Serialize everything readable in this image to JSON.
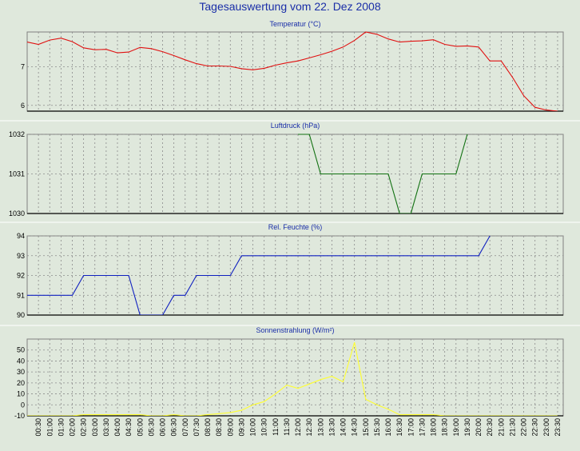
{
  "title": "Tagesauswertung vom 22. Dez 2008",
  "chart_data": [
    {
      "type": "line",
      "title": "Temperatur (°C)",
      "color": "#e01010",
      "ylim": [
        5.85,
        7.9
      ],
      "yticks": [
        6,
        7
      ],
      "grid": true,
      "x": [
        "00:00",
        "00:30",
        "01:00",
        "01:30",
        "02:00",
        "02:30",
        "03:00",
        "03:30",
        "04:00",
        "04:30",
        "05:00",
        "05:30",
        "06:00",
        "06:30",
        "07:00",
        "07:30",
        "08:00",
        "08:30",
        "09:00",
        "09:30",
        "10:00",
        "10:30",
        "11:00",
        "11:30",
        "12:00",
        "12:30",
        "13:00",
        "13:30",
        "14:00",
        "14:30",
        "15:00",
        "15:30",
        "16:00",
        "16:30",
        "17:00",
        "17:30",
        "18:00",
        "18:30",
        "19:00",
        "19:30",
        "20:00",
        "20:30",
        "21:00",
        "21:30",
        "22:00",
        "22:30",
        "23:00",
        "23:30"
      ],
      "values": [
        7.64,
        7.58,
        7.69,
        7.74,
        7.65,
        7.49,
        7.44,
        7.45,
        7.36,
        7.38,
        7.5,
        7.47,
        7.39,
        7.29,
        7.18,
        7.08,
        7.02,
        7.02,
        7.01,
        6.95,
        6.92,
        6.96,
        7.04,
        7.1,
        7.15,
        7.23,
        7.31,
        7.4,
        7.51,
        7.68,
        7.9,
        7.84,
        7.72,
        7.64,
        7.66,
        7.67,
        7.7,
        7.58,
        7.53,
        7.54,
        7.51,
        7.15,
        7.15,
        6.73,
        6.25,
        5.95,
        5.88,
        5.85
      ]
    },
    {
      "type": "line",
      "title": "Luftdruck (hPa)",
      "color": "#107010",
      "ylim": [
        1030,
        1032
      ],
      "yticks": [
        1030,
        1031,
        1032
      ],
      "grid": true,
      "x": [
        "12:00",
        "12:30",
        "13:00",
        "13:30",
        "14:00",
        "14:30",
        "15:00",
        "15:30",
        "16:00",
        "16:30",
        "17:00",
        "17:30",
        "18:00",
        "18:30",
        "19:00",
        "19:30"
      ],
      "values": [
        1032,
        1032,
        1031,
        1031,
        1031,
        1031,
        1031,
        1031,
        1031,
        1030,
        1030,
        1031,
        1031,
        1031,
        1031,
        1032
      ]
    },
    {
      "type": "line",
      "title": "Rel. Feuchte (%)",
      "color": "#1020c0",
      "ylim": [
        90,
        94
      ],
      "yticks": [
        90,
        91,
        92,
        93,
        94
      ],
      "grid": true,
      "x": [
        "00:00",
        "00:30",
        "01:00",
        "01:30",
        "02:00",
        "02:30",
        "03:00",
        "03:30",
        "04:00",
        "04:30",
        "05:00",
        "05:30",
        "06:00",
        "06:30",
        "07:00",
        "07:30",
        "08:00",
        "08:30",
        "09:00",
        "09:30",
        "10:00",
        "19:30",
        "20:00",
        "20:30"
      ],
      "values": [
        91,
        91,
        91,
        91,
        91,
        92,
        92,
        92,
        92,
        92,
        90,
        90,
        90,
        91,
        91,
        92,
        92,
        92,
        92,
        93,
        93,
        93,
        93,
        94
      ]
    },
    {
      "type": "line",
      "title": "Sonnenstrahlung (W/m²)",
      "color": "#ffff30",
      "ylim": [
        -10,
        60
      ],
      "yticks": [
        -10,
        0,
        10,
        20,
        30,
        40,
        50
      ],
      "grid": true,
      "x": [
        "00:00",
        "00:30",
        "01:00",
        "01:30",
        "02:00",
        "02:30",
        "03:00",
        "03:30",
        "04:00",
        "04:30",
        "05:00",
        "05:30",
        "06:00",
        "06:30",
        "07:00",
        "07:30",
        "08:00",
        "08:30",
        "09:00",
        "09:30",
        "10:00",
        "10:30",
        "11:00",
        "11:30",
        "12:00",
        "12:30",
        "13:00",
        "13:30",
        "14:00",
        "14:30",
        "15:00",
        "15:30",
        "16:00",
        "16:30",
        "17:00",
        "17:30",
        "18:00",
        "18:30",
        "19:00",
        "19:30",
        "20:00",
        "20:30",
        "21:00",
        "21:30",
        "22:00",
        "22:30",
        "23:00",
        "23:30"
      ],
      "values": [
        -10,
        -10,
        -10,
        -10,
        -10,
        -9,
        -9,
        -9,
        -9,
        -9,
        -9,
        -10,
        -10,
        -9,
        -10,
        -10,
        -9,
        -8,
        -7,
        -5,
        0,
        3,
        10,
        18,
        15,
        19,
        23,
        26,
        21,
        57,
        5,
        0,
        -4,
        -9,
        -9,
        -9,
        -9,
        -10,
        -10,
        -10,
        -10,
        -10,
        -10,
        -10,
        -10,
        -10,
        -10,
        -10
      ]
    }
  ],
  "x_axis": {
    "ticks": [
      "00:30",
      "01:00",
      "01:30",
      "02:00",
      "02:30",
      "03:00",
      "03:30",
      "04:00",
      "04:30",
      "05:00",
      "05:30",
      "06:00",
      "06:30",
      "07:00",
      "07:30",
      "08:00",
      "08:30",
      "09:00",
      "09:30",
      "10:00",
      "10:30",
      "11:00",
      "11:30",
      "12:00",
      "12:30",
      "13:00",
      "13:30",
      "14:00",
      "14:30",
      "15:00",
      "15:30",
      "16:00",
      "16:30",
      "17:00",
      "17:30",
      "18:00",
      "18:30",
      "19:00",
      "19:30",
      "20:00",
      "20:30",
      "21:00",
      "21:30",
      "22:00",
      "22:30",
      "23:00",
      "23:30"
    ]
  }
}
